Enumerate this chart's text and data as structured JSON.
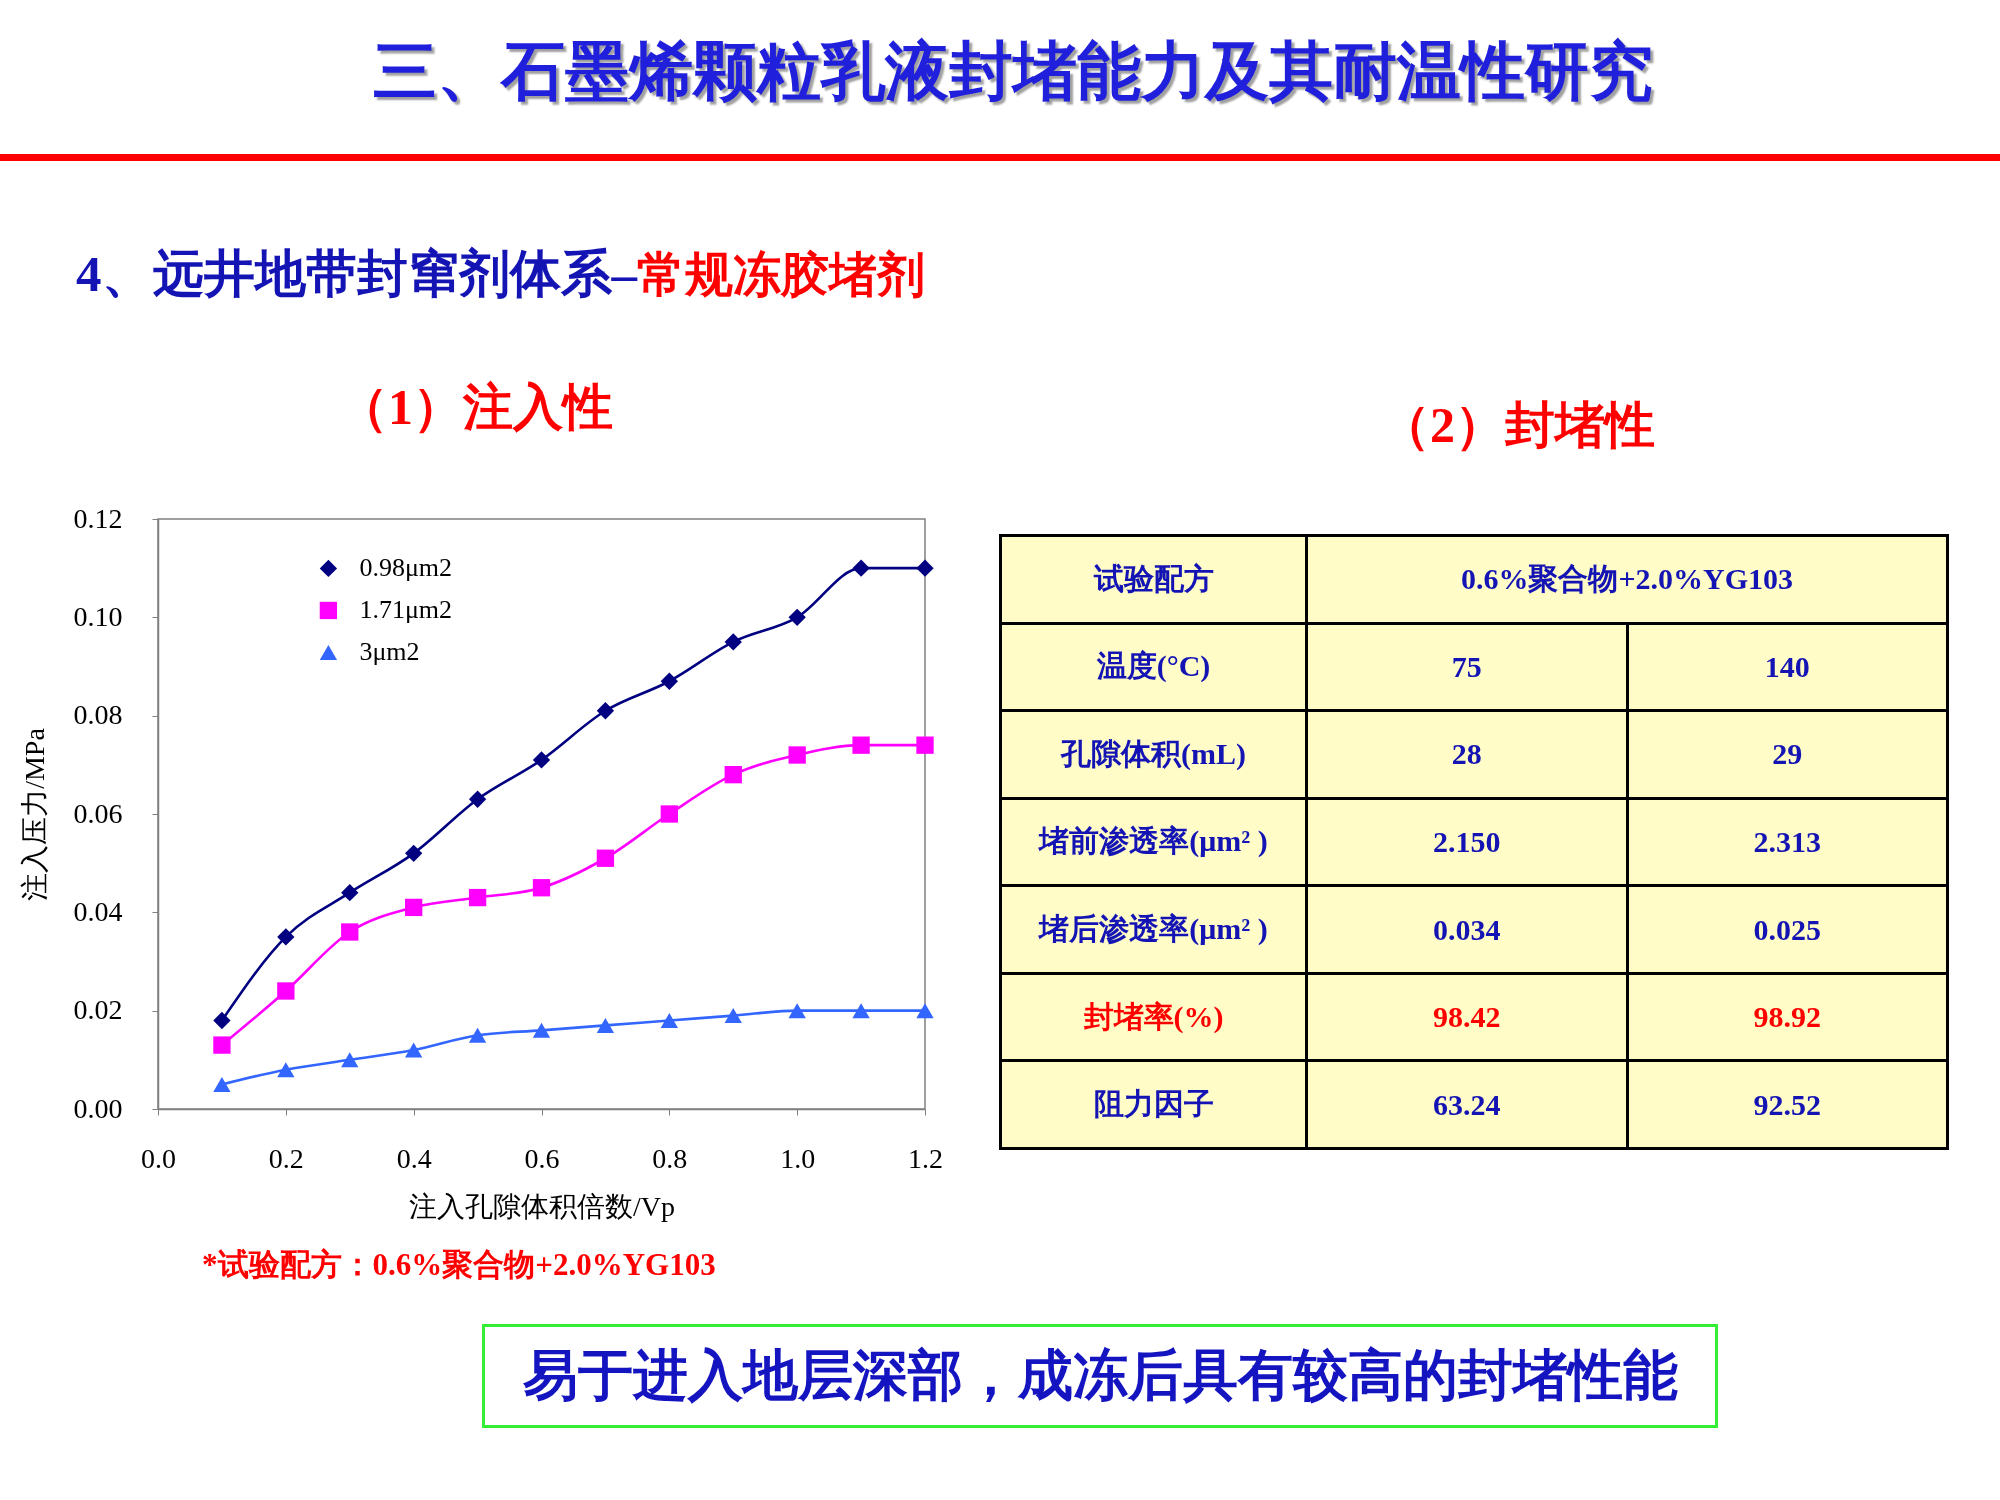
{
  "chart_data": [
    {
      "type": "line",
      "title": "三、石墨烯颗粒乳液封堵能力及其耐温性研究",
      "subtitle": "（1）注入性",
      "xlabel": "注入孔隙体积倍数/Vp",
      "ylabel": "注入压力/MPa",
      "x": [
        0.1,
        0.2,
        0.3,
        0.4,
        0.5,
        0.6,
        0.7,
        0.8,
        0.9,
        1.0,
        1.1,
        1.2
      ],
      "series": [
        {
          "name": "0.98μm2",
          "color": "#000080",
          "marker": "diamond",
          "values": [
            0.018,
            0.035,
            0.044,
            0.052,
            0.063,
            0.071,
            0.081,
            0.087,
            0.095,
            0.1,
            0.11,
            0.11
          ]
        },
        {
          "name": "1.71μm2",
          "color": "#ff00ff",
          "marker": "square",
          "values": [
            0.013,
            0.024,
            0.036,
            0.041,
            0.043,
            0.045,
            0.051,
            0.06,
            0.068,
            0.072,
            0.074,
            0.074
          ]
        },
        {
          "name": "3μm2",
          "color": "#3366ff",
          "marker": "triangle",
          "values": [
            0.005,
            0.008,
            0.01,
            0.012,
            0.015,
            0.016,
            0.017,
            0.018,
            0.019,
            0.02,
            0.02,
            0.02
          ]
        }
      ],
      "xlim": [
        0,
        1.2
      ],
      "xticks": [
        {
          "value": 0,
          "label": "0.0"
        },
        0.2,
        0.4,
        0.6,
        0.8,
        {
          "value": 1,
          "label": "1.0"
        },
        1.2
      ],
      "ylim": [
        0,
        0.12
      ],
      "yticks": [
        {
          "value": 0,
          "label": "0.00"
        },
        0.02,
        0.04,
        0.06,
        0.08,
        {
          "value": 0.1,
          "label": "0.10"
        },
        0.12
      ],
      "legend": "top left",
      "line_style": "solid",
      "annotations": [
        "4、远井地带封窜剂体系–",
        "常规冻胶堵剂",
        "*试验配方：0.6%聚合物+2.0%YG103"
      ]
    },
    {
      "type": "other",
      "title": "（2）封堵性",
      "y_categories": [
        "试验配方",
        "温度(°C)",
        "孔隙体积(mL)",
        "堵前渗透率(μm² )",
        "堵后渗透率(μm² )",
        "封堵率(%)",
        "阻力因子"
      ],
      "cell_labels": [
        [
          "0.6%聚合物+2.0%YG103"
        ],
        [
          "75",
          "140"
        ],
        [
          "28",
          "29"
        ],
        [
          "2.150",
          "2.313"
        ],
        [
          "0.034",
          "0.025"
        ],
        [
          "98.42",
          "98.92"
        ],
        [
          "63.24",
          "92.52"
        ]
      ],
      "colors": [
        "#1414b4",
        "#1414b4",
        "#1414b4",
        "#1414b4",
        "#1414b4",
        "#ff0000",
        "#1414b4"
      ],
      "annotations": [
        "易于进入地层深部，成冻后具有较高的封堵性能"
      ]
    }
  ]
}
